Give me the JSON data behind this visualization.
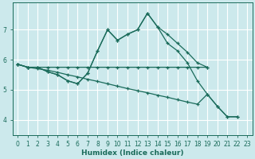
{
  "xlabel": "Humidex (Indice chaleur)",
  "bg_color": "#cce9ec",
  "line_color": "#1a6b5a",
  "grid_color": "#ffffff",
  "xlim": [
    -0.5,
    23.5
  ],
  "ylim": [
    3.5,
    7.9
  ],
  "yticks": [
    4,
    5,
    6,
    7
  ],
  "xticks": [
    0,
    1,
    2,
    3,
    4,
    5,
    6,
    7,
    8,
    9,
    10,
    11,
    12,
    13,
    14,
    15,
    16,
    17,
    18,
    19,
    20,
    21,
    22,
    23
  ],
  "series1_x": [
    0,
    1,
    2,
    3,
    4,
    5,
    6,
    7,
    8,
    9,
    10,
    11,
    12,
    13,
    14,
    15,
    16,
    17,
    18,
    19
  ],
  "series1_y": [
    5.85,
    5.75,
    5.75,
    5.75,
    5.75,
    5.75,
    5.75,
    5.75,
    5.75,
    5.75,
    5.75,
    5.75,
    5.75,
    5.75,
    5.75,
    5.75,
    5.75,
    5.75,
    5.75,
    5.75
  ],
  "series2_x": [
    0,
    1,
    2,
    3,
    4,
    5,
    6,
    7,
    8,
    9,
    10,
    11,
    12,
    13,
    14,
    15,
    16,
    17,
    18,
    19
  ],
  "series2_y": [
    5.85,
    5.75,
    5.75,
    5.6,
    5.5,
    5.3,
    5.2,
    5.55,
    6.3,
    7.0,
    6.65,
    6.85,
    7.0,
    7.55,
    7.1,
    6.85,
    6.55,
    6.25,
    5.9,
    5.75
  ],
  "series3_x": [
    0,
    1,
    2,
    3,
    4,
    5,
    6,
    7,
    8,
    9,
    10,
    11,
    12,
    13,
    14,
    15,
    16,
    17,
    18,
    19,
    20,
    21,
    22
  ],
  "series3_y": [
    5.85,
    5.75,
    5.75,
    5.6,
    5.5,
    5.3,
    5.2,
    5.55,
    6.3,
    7.0,
    6.65,
    6.85,
    7.0,
    7.55,
    7.1,
    6.55,
    6.3,
    5.9,
    5.3,
    4.85,
    4.45,
    4.1,
    4.1
  ],
  "series4_x": [
    0,
    1,
    2,
    3,
    4,
    5,
    6,
    7,
    8,
    9,
    10,
    11,
    12,
    13,
    14,
    15,
    16,
    17,
    18,
    19,
    20,
    21,
    22
  ],
  "series4_y": [
    5.85,
    5.75,
    5.7,
    5.65,
    5.58,
    5.5,
    5.43,
    5.35,
    5.28,
    5.2,
    5.12,
    5.04,
    4.97,
    4.9,
    4.82,
    4.75,
    4.67,
    4.59,
    4.52,
    4.85,
    4.45,
    4.1,
    4.1
  ]
}
